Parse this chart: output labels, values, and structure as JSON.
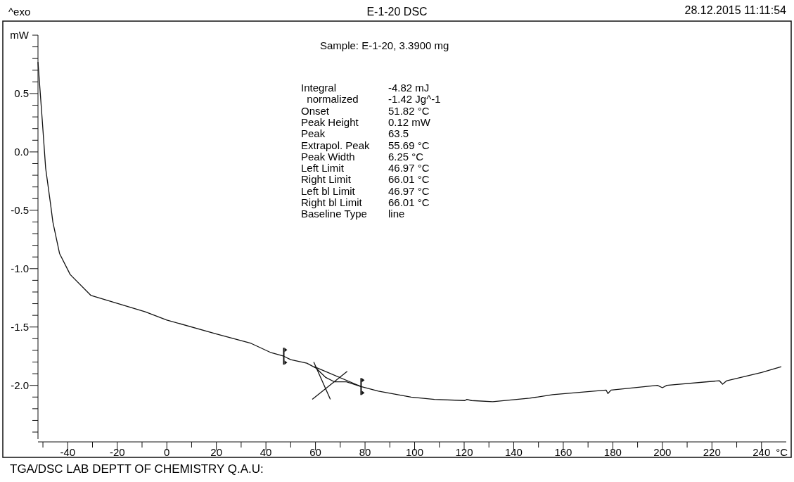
{
  "chart_data": {
    "type": "line",
    "title": "E-1-20 DSC",
    "subtitle": "Sample: E-1-20, 3.3900 mg",
    "xlabel": "°C",
    "ylabel": "mW",
    "annotations": [
      "^exo",
      "28.12.2015 11:11:54",
      "TGA/DSC LAB DEPTT OF CHEMISTRY Q.A.U:",
      "Integral",
      "-4.82 mJ",
      "  normalized",
      "-1.42 Jg^-1",
      "Onset",
      "51.82 °C",
      "Peak Height",
      "0.12 mW",
      "Peak",
      "63.5",
      "Extrapol. Peak",
      "55.69 °C",
      "Peak Width",
      "6.25 °C",
      "Left Limit",
      "46.97 °C",
      "Right Limit",
      "66.01 °C",
      "Left bl Limit",
      "46.97 °C",
      "Right bl Limit",
      "66.01 °C",
      "Baseline Type",
      "line"
    ],
    "xlim": [
      -52,
      250
    ],
    "ylim": [
      -2.46,
      1.0
    ],
    "xticks": [
      {
        "value": -50,
        "label": null
      },
      -40,
      {
        "value": -30,
        "label": null
      },
      -20,
      {
        "value": -10,
        "label": null
      },
      0,
      {
        "value": 10,
        "label": null
      },
      20,
      {
        "value": 30,
        "label": null
      },
      40,
      {
        "value": 50,
        "label": null
      },
      60,
      {
        "value": 70,
        "label": null
      },
      80,
      {
        "value": 90,
        "label": null
      },
      100,
      {
        "value": 110,
        "label": null
      },
      120,
      {
        "value": 130,
        "label": null
      },
      140,
      {
        "value": 150,
        "label": null
      },
      160,
      {
        "value": 170,
        "label": null
      },
      180,
      {
        "value": 190,
        "label": null
      },
      200,
      {
        "value": 210,
        "label": null
      },
      220,
      {
        "value": 230,
        "label": null
      },
      240
    ],
    "yticks": [
      {
        "value": -2.4,
        "label": null
      },
      {
        "value": -2.3,
        "label": null
      },
      {
        "value": -2.2,
        "label": null
      },
      {
        "value": -2.1,
        "label": null
      },
      {
        "value": -2.0,
        "label": "-2.0"
      },
      {
        "value": -1.9,
        "label": null
      },
      {
        "value": -1.8,
        "label": null
      },
      {
        "value": -1.7,
        "label": null
      },
      {
        "value": -1.6,
        "label": null
      },
      -1.5,
      {
        "value": -1.4,
        "label": null
      },
      {
        "value": -1.3,
        "label": null
      },
      {
        "value": -1.2,
        "label": null
      },
      {
        "value": -1.1,
        "label": null
      },
      {
        "value": -1.0,
        "label": "-1.0"
      },
      {
        "value": -0.9,
        "label": null
      },
      {
        "value": -0.8,
        "label": null
      },
      {
        "value": -0.7,
        "label": null
      },
      {
        "value": -0.6,
        "label": null
      },
      -0.5,
      {
        "value": -0.4,
        "label": null
      },
      {
        "value": -0.3,
        "label": null
      },
      {
        "value": -0.2,
        "label": null
      },
      {
        "value": -0.1,
        "label": null
      },
      {
        "value": 0,
        "label": "0.0"
      },
      {
        "value": 0.1,
        "label": null
      },
      {
        "value": 0.2,
        "label": null
      },
      {
        "value": 0.3,
        "label": null
      },
      {
        "value": 0.4,
        "label": null
      },
      0.5,
      {
        "value": 0.6,
        "label": null
      },
      {
        "value": 0.7,
        "label": null
      },
      {
        "value": 0.8,
        "label": null
      },
      {
        "value": 0.9,
        "label": null
      },
      {
        "value": 1.0,
        "label": null
      }
    ],
    "grid": false,
    "marker": "none",
    "line_style": "solid",
    "series": [
      {
        "color": "#111111",
        "x": [
          -52,
          -50.3,
          -48.9,
          -46.9,
          -46,
          -43.3,
          -39,
          -30.6,
          -8.7,
          0,
          20,
          34,
          42.1,
          47.2,
          50,
          56.5,
          60.1,
          64,
          67.7,
          72.5,
          78.4,
          85.4,
          98.6,
          108,
          120.3,
          121.1,
          123,
          131.5,
          146.4,
          155.7,
          177.3,
          178,
          179.3,
          198,
          200,
          201.8,
          223,
          224.3,
          226,
          240,
          248
        ],
        "values": [
          0.77,
          0.28,
          -0.14,
          -0.45,
          -0.6,
          -0.87,
          -1.05,
          -1.23,
          -1.37,
          -1.44,
          -1.56,
          -1.64,
          -1.72,
          -1.75,
          -1.78,
          -1.81,
          -1.85,
          -1.93,
          -1.97,
          -1.97,
          -2.01,
          -2.05,
          -2.1,
          -2.12,
          -2.13,
          -2.12,
          -2.13,
          -2.14,
          -2.11,
          -2.08,
          -2.04,
          -2.07,
          -2.04,
          -2.0,
          -2.02,
          -2.0,
          -1.96,
          -1.99,
          -1.96,
          -1.89,
          -1.84
        ]
      },
      {
        "color": "#111111",
        "x": [
          59.5,
          78.4
        ],
        "values": [
          -1.84,
          -2.01
        ]
      },
      {
        "color": "#111111",
        "x": [
          59.3,
          66
        ],
        "values": [
          -1.8,
          -2.12
        ]
      },
      {
        "color": "#111111",
        "x": [
          58.7,
          72.8
        ],
        "values": [
          -2.12,
          -1.88
        ]
      }
    ]
  }
}
